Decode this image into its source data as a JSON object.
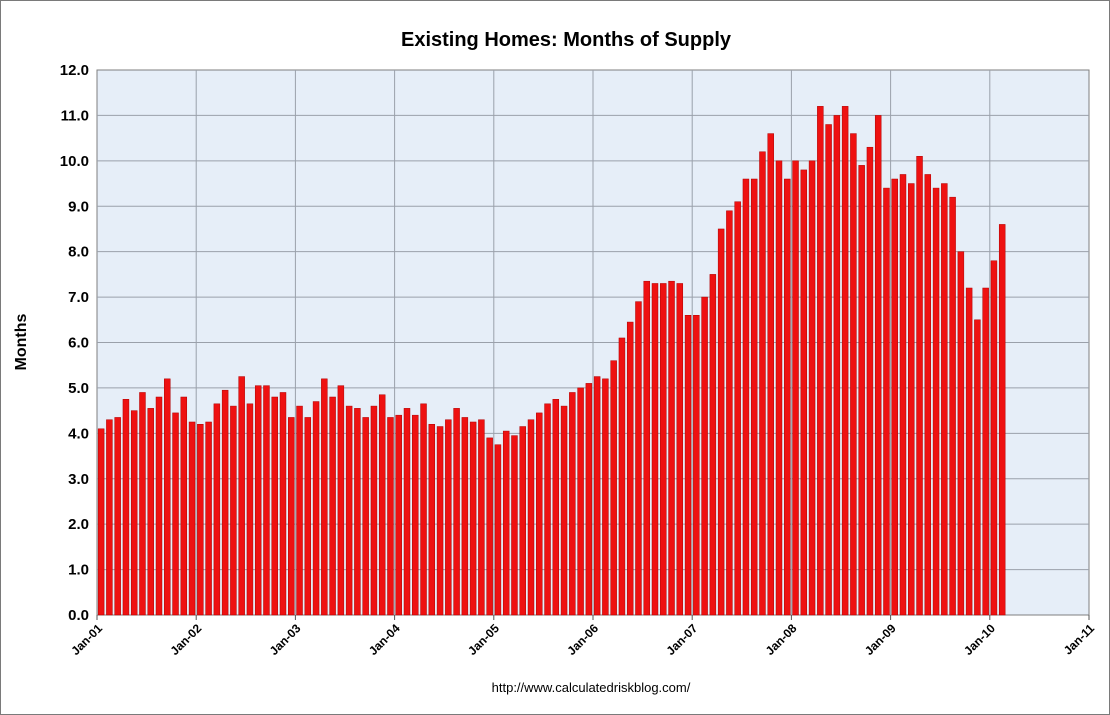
{
  "chart_data": {
    "type": "bar",
    "title": "Existing Homes: Months of Supply",
    "xlabel": "",
    "ylabel": "Months",
    "ylim": [
      0,
      12
    ],
    "y_ticks": [
      "0.0",
      "1.0",
      "2.0",
      "3.0",
      "4.0",
      "5.0",
      "6.0",
      "7.0",
      "8.0",
      "9.0",
      "10.0",
      "11.0",
      "12.0"
    ],
    "x_ticks": [
      "Jan-01",
      "Jan-02",
      "Jan-03",
      "Jan-04",
      "Jan-05",
      "Jan-06",
      "Jan-07",
      "Jan-08",
      "Jan-09",
      "Jan-10",
      "Jan-11"
    ],
    "grid": true,
    "start": "Jan-01",
    "end": "Jan-11",
    "series": [
      {
        "name": "Months of Supply",
        "color": "#ee1111",
        "values": [
          4.1,
          4.3,
          4.35,
          4.75,
          4.5,
          4.9,
          4.55,
          4.8,
          5.2,
          4.45,
          4.8,
          4.25,
          4.2,
          4.25,
          4.65,
          4.95,
          4.6,
          5.25,
          4.65,
          5.05,
          5.05,
          4.8,
          4.9,
          4.35,
          4.6,
          4.35,
          4.7,
          5.2,
          4.8,
          5.05,
          4.6,
          4.55,
          4.35,
          4.6,
          4.85,
          4.35,
          4.4,
          4.55,
          4.4,
          4.65,
          4.2,
          4.15,
          4.3,
          4.55,
          4.35,
          4.25,
          4.3,
          3.9,
          3.75,
          4.05,
          3.95,
          4.15,
          4.3,
          4.45,
          4.65,
          4.75,
          4.6,
          4.9,
          5.0,
          5.1,
          5.25,
          5.2,
          5.6,
          6.1,
          6.45,
          6.9,
          7.35,
          7.3,
          7.3,
          7.35,
          7.3,
          6.6,
          6.6,
          7.0,
          7.5,
          8.5,
          8.9,
          9.1,
          9.6,
          9.6,
          10.2,
          10.6,
          10.0,
          9.6,
          10.0,
          9.8,
          10.0,
          11.2,
          10.8,
          11.0,
          11.2,
          10.6,
          9.9,
          10.3,
          11.0,
          9.4,
          9.6,
          9.7,
          9.5,
          10.1,
          9.7,
          9.4,
          9.5,
          9.2,
          8.0,
          7.2,
          6.5,
          7.2,
          7.8,
          8.6
        ]
      }
    ]
  },
  "source_url": "http://www.calculatedriskblog.com/",
  "colors": {
    "bar_fill": "#ee1111",
    "bar_stroke": "#b00000",
    "plot_background": "#e6eef8",
    "gridline": "#9aa0aa"
  }
}
